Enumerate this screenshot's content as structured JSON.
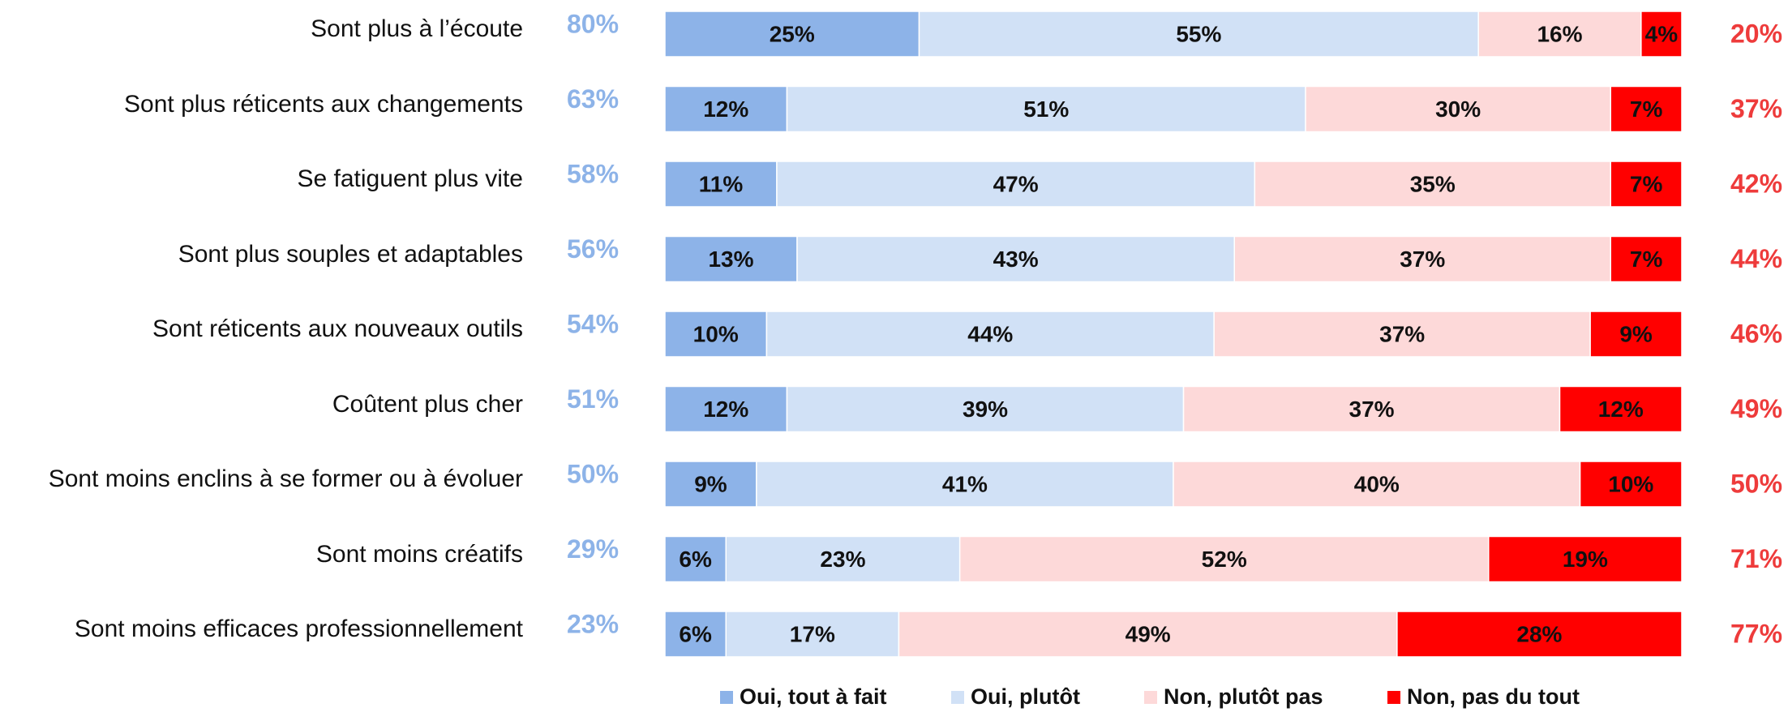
{
  "chart_data": {
    "type": "stacked-barh",
    "categories": [
      "Sont plus à l’écoute",
      "Sont plus réticents aux changements",
      "Se fatiguent plus vite",
      "Sont plus souples et adaptables",
      "Sont réticents aux nouveaux outils",
      "Coûtent plus cher",
      "Sont moins enclins à se former ou à évoluer",
      "Sont moins créatifs",
      "Sont moins efficaces professionnellement"
    ],
    "xlim": [
      0,
      100
    ],
    "series": [
      {
        "name": "Oui, tout à fait",
        "color": "#8db3e8",
        "values": [
          25,
          12,
          11,
          13,
          10,
          12,
          9,
          6,
          6
        ],
        "value_labels": [
          "25%",
          "12%",
          "11%",
          "13%",
          "10%",
          "12%",
          "9%",
          "6%",
          "6%"
        ]
      },
      {
        "name": "Oui, plutôt",
        "color": "#d1e1f6",
        "values": [
          55,
          51,
          47,
          43,
          44,
          39,
          41,
          23,
          17
        ],
        "value_labels": [
          "55%",
          "51%",
          "47%",
          "43%",
          "44%",
          "39%",
          "41%",
          "23%",
          "17%"
        ]
      },
      {
        "name": "Non, plutôt pas",
        "color": "#fdd9d9",
        "values": [
          16,
          30,
          35,
          37,
          37,
          37,
          40,
          52,
          49
        ],
        "value_labels": [
          "16%",
          "30%",
          "35%",
          "37%",
          "37%",
          "37%",
          "40%",
          "52%",
          "49%"
        ]
      },
      {
        "name": "Non, pas du tout",
        "color": "#ff0000",
        "values": [
          4,
          7,
          7,
          7,
          9,
          12,
          10,
          19,
          28
        ],
        "value_labels": [
          "4%",
          "7%",
          "7%",
          "7%",
          "9%",
          "12%",
          "10%",
          "19%",
          "28%"
        ]
      }
    ],
    "totals": {
      "left": {
        "color": "#8db3e8",
        "values": [
          80,
          63,
          58,
          56,
          54,
          51,
          50,
          29,
          23
        ],
        "value_labels": [
          "80%",
          "63%",
          "58%",
          "56%",
          "54%",
          "51%",
          "50%",
          "29%",
          "23%"
        ]
      },
      "right": {
        "color": "#ee3b3b",
        "values": [
          20,
          37,
          42,
          44,
          46,
          49,
          50,
          71,
          77
        ],
        "value_labels": [
          "20%",
          "37%",
          "42%",
          "44%",
          "46%",
          "49%",
          "50%",
          "71%",
          "77%"
        ]
      }
    },
    "legend": "bottom"
  }
}
